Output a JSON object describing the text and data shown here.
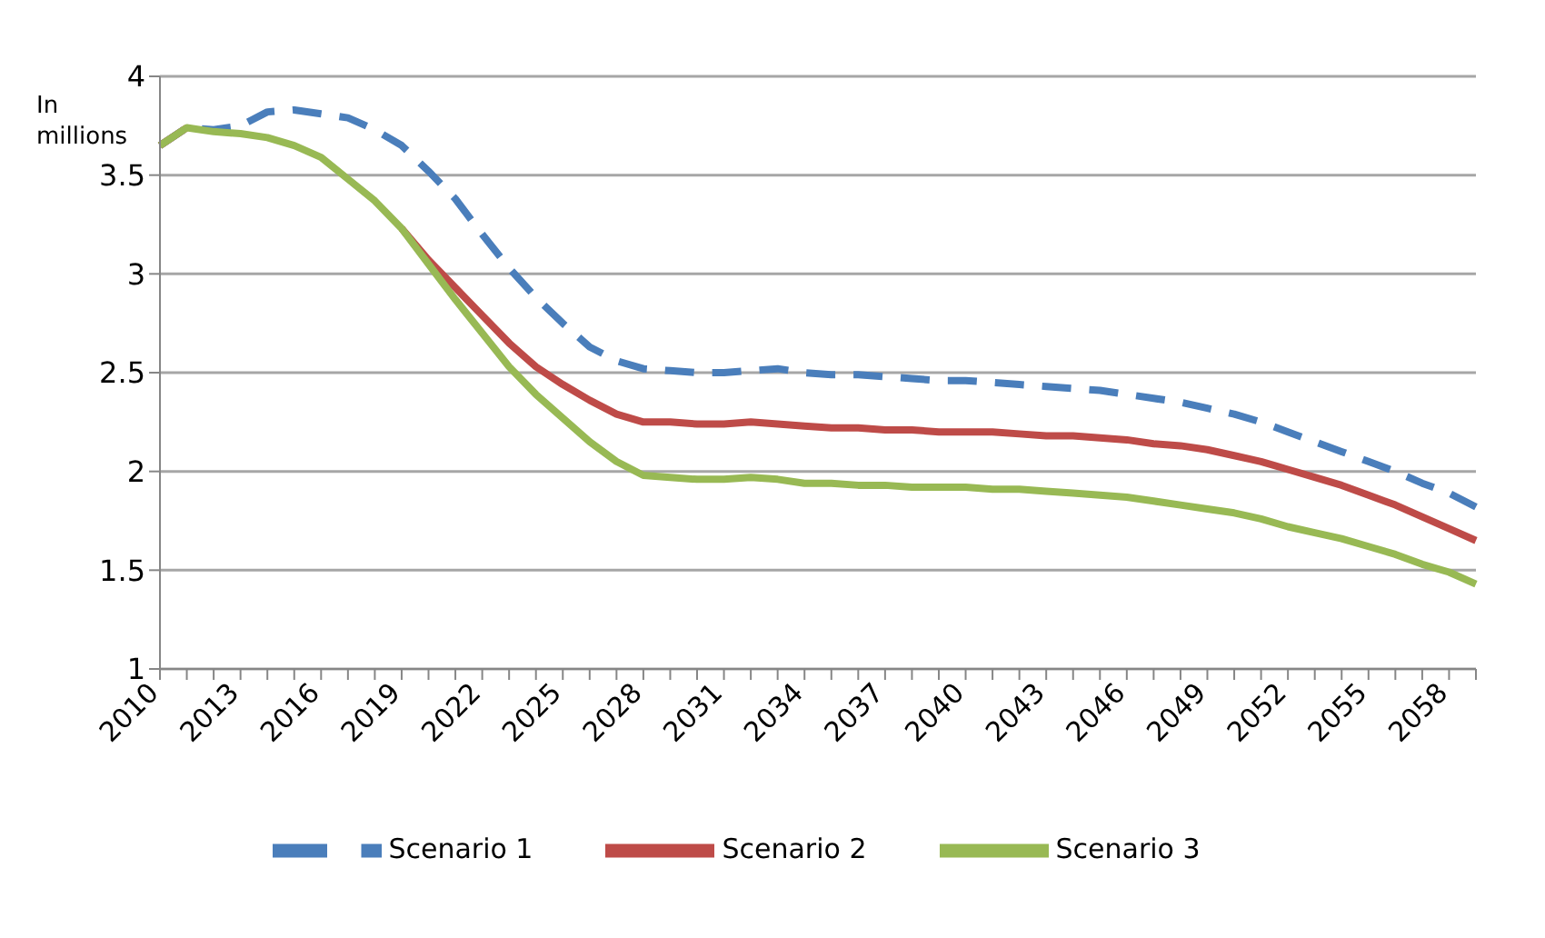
{
  "chart_data": {
    "type": "line",
    "ylabel": "In millions",
    "categories": [
      "2010",
      null,
      null,
      "2013",
      null,
      null,
      "2016",
      null,
      null,
      "2019",
      null,
      null,
      "2022",
      null,
      null,
      "2025",
      null,
      null,
      "2028",
      null,
      null,
      "2031",
      null,
      null,
      "2034",
      null,
      null,
      "2037",
      null,
      null,
      "2040",
      null,
      null,
      "2043",
      null,
      null,
      "2046",
      null,
      null,
      "2049",
      null,
      null,
      "2052",
      null,
      null,
      "2055",
      null,
      null,
      "2058",
      null
    ],
    "series": [
      {
        "name": "Scenario 1",
        "color": "#4a7ebb",
        "line_style": "dashed",
        "values": [
          3.65,
          3.74,
          3.73,
          3.75,
          3.82,
          3.83,
          3.81,
          3.79,
          3.73,
          3.65,
          3.52,
          3.38,
          3.2,
          3.03,
          2.88,
          2.75,
          2.63,
          2.56,
          2.52,
          2.51,
          2.5,
          2.5,
          2.51,
          2.52,
          2.5,
          2.49,
          2.49,
          2.48,
          2.47,
          2.46,
          2.46,
          2.45,
          2.44,
          2.43,
          2.42,
          2.41,
          2.39,
          2.37,
          2.35,
          2.32,
          2.29,
          2.25,
          2.2,
          2.15,
          2.1,
          2.05,
          2.0,
          1.94,
          1.89,
          1.82
        ]
      },
      {
        "name": "Scenario 2",
        "color": "#be4b48",
        "line_style": "solid",
        "values": [
          3.65,
          3.74,
          null,
          null,
          null,
          null,
          null,
          null,
          null,
          3.23,
          3.07,
          2.93,
          2.79,
          2.65,
          2.53,
          2.44,
          2.36,
          2.29,
          2.25,
          2.25,
          2.24,
          2.24,
          2.25,
          2.24,
          2.23,
          2.22,
          2.22,
          2.21,
          2.21,
          2.2,
          2.2,
          2.2,
          2.19,
          2.18,
          2.18,
          2.17,
          2.16,
          2.14,
          2.13,
          2.11,
          2.08,
          2.05,
          2.01,
          1.97,
          1.93,
          1.88,
          1.83,
          1.77,
          1.71,
          1.65
        ]
      },
      {
        "name": "Scenario 3",
        "color": "#98b954",
        "line_style": "solid",
        "values": [
          3.65,
          3.74,
          3.72,
          3.71,
          3.69,
          3.65,
          3.59,
          3.48,
          3.37,
          3.23,
          3.05,
          2.87,
          2.7,
          2.53,
          2.39,
          2.27,
          2.15,
          2.05,
          1.98,
          1.97,
          1.96,
          1.96,
          1.97,
          1.96,
          1.94,
          1.94,
          1.93,
          1.93,
          1.92,
          1.92,
          1.92,
          1.91,
          1.91,
          1.9,
          1.89,
          1.88,
          1.87,
          1.85,
          1.83,
          1.81,
          1.79,
          1.76,
          1.72,
          1.69,
          1.66,
          1.62,
          1.58,
          1.53,
          1.49,
          1.43
        ]
      }
    ],
    "ylim": [
      1,
      4
    ],
    "yticks": [
      1,
      1.5,
      2,
      2.5,
      3,
      3.5,
      4
    ],
    "grid": "y",
    "legend": "bottom",
    "marker": "none"
  }
}
